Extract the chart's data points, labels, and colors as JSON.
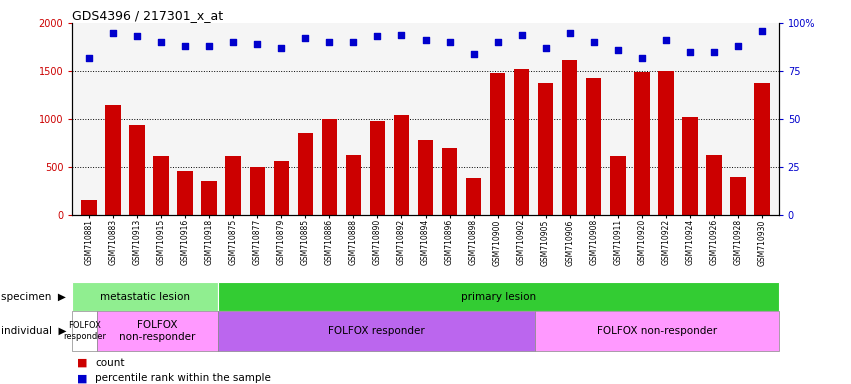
{
  "title": "GDS4396 / 217301_x_at",
  "samples": [
    "GSM710881",
    "GSM710883",
    "GSM710913",
    "GSM710915",
    "GSM710916",
    "GSM710918",
    "GSM710875",
    "GSM710877",
    "GSM710879",
    "GSM710885",
    "GSM710886",
    "GSM710888",
    "GSM710890",
    "GSM710892",
    "GSM710894",
    "GSM710896",
    "GSM710898",
    "GSM710900",
    "GSM710902",
    "GSM710905",
    "GSM710906",
    "GSM710908",
    "GSM710911",
    "GSM710920",
    "GSM710922",
    "GSM710924",
    "GSM710926",
    "GSM710928",
    "GSM710930"
  ],
  "counts": [
    160,
    1150,
    940,
    610,
    460,
    350,
    610,
    500,
    560,
    850,
    1000,
    630,
    980,
    1040,
    780,
    700,
    390,
    1480,
    1520,
    1380,
    1620,
    1430,
    620,
    1490,
    1500,
    1020,
    630,
    400,
    1380
  ],
  "percentile_ranks": [
    82,
    95,
    93,
    90,
    88,
    88,
    90,
    89,
    87,
    92,
    90,
    90,
    93,
    94,
    91,
    90,
    84,
    90,
    94,
    87,
    95,
    90,
    86,
    82,
    91,
    85,
    85,
    88,
    96
  ],
  "bar_color": "#cc0000",
  "dot_color": "#0000cc",
  "ylim_left": [
    0,
    2000
  ],
  "ylim_right": [
    0,
    100
  ],
  "yticks_left": [
    0,
    500,
    1000,
    1500,
    2000
  ],
  "yticks_right": [
    0,
    25,
    50,
    75,
    100
  ],
  "specimen_groups": [
    {
      "label": "metastatic lesion",
      "start": 0,
      "end": 6,
      "color": "#90ee90"
    },
    {
      "label": "primary lesion",
      "start": 6,
      "end": 29,
      "color": "#33cc33"
    }
  ],
  "individual_groups": [
    {
      "label": "FOLFOX\nresponder",
      "start": 0,
      "end": 1,
      "color": "#ffffff"
    },
    {
      "label": "FOLFOX\nnon-responder",
      "start": 1,
      "end": 6,
      "color": "#ff99ff"
    },
    {
      "label": "FOLFOX responder",
      "start": 6,
      "end": 19,
      "color": "#bb66ee"
    },
    {
      "label": "FOLFOX non-responder",
      "start": 19,
      "end": 29,
      "color": "#ff99ff"
    }
  ],
  "legend_count_label": "count",
  "legend_pct_label": "percentile rank within the sample",
  "specimen_label": "specimen",
  "individual_label": "individual"
}
